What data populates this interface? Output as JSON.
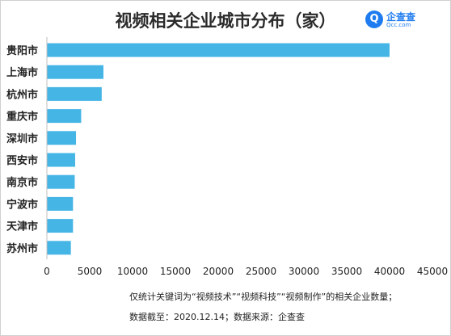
{
  "title": "视频相关企业城市分布（家）",
  "logo": {
    "name": "企查查",
    "sub": "Qcc.com",
    "icon": "logo-mark-icon",
    "color": "#1f7cf0"
  },
  "footnote": "仅统计关键词为“视频技术”“视频科技”“视频制作”的相关企业数量；",
  "source": "数据截至：2020.12.14；数据来源：企查查",
  "chart_data": {
    "type": "bar",
    "orientation": "horizontal",
    "title": "视频相关企业城市分布（家）",
    "categories": [
      "贵阳市",
      "上海市",
      "杭州市",
      "重庆市",
      "深圳市",
      "西安市",
      "南京市",
      "宁波市",
      "天津市",
      "苏州市"
    ],
    "values": [
      40000,
      6600,
      6400,
      4000,
      3400,
      3300,
      3250,
      3050,
      3050,
      2800
    ],
    "xlim": [
      0,
      45000
    ],
    "xticks": [
      0,
      5000,
      10000,
      15000,
      20000,
      25000,
      30000,
      35000,
      40000,
      45000
    ],
    "bar_color": "#45b5e6",
    "grid": false,
    "legend": "none"
  }
}
